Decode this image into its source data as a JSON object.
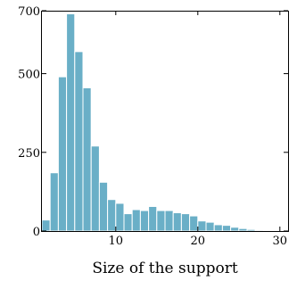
{
  "chart_data": {
    "type": "bar",
    "title": "",
    "xlabel": "Size of the support",
    "ylabel": "",
    "xlim": [
      1,
      31
    ],
    "ylim": [
      0,
      700
    ],
    "xticks": [
      10,
      20,
      30
    ],
    "yticks": [
      0,
      250,
      500,
      700
    ],
    "grid": false,
    "legend": "none",
    "bar_color": "#6aafc7",
    "bins": [
      {
        "x": 1,
        "value": 35
      },
      {
        "x": 2,
        "value": 185
      },
      {
        "x": 3,
        "value": 490
      },
      {
        "x": 4,
        "value": 690
      },
      {
        "x": 5,
        "value": 570
      },
      {
        "x": 6,
        "value": 455
      },
      {
        "x": 7,
        "value": 270
      },
      {
        "x": 8,
        "value": 155
      },
      {
        "x": 9,
        "value": 100
      },
      {
        "x": 10,
        "value": 88
      },
      {
        "x": 11,
        "value": 55
      },
      {
        "x": 12,
        "value": 68
      },
      {
        "x": 13,
        "value": 65
      },
      {
        "x": 14,
        "value": 78
      },
      {
        "x": 15,
        "value": 65
      },
      {
        "x": 16,
        "value": 65
      },
      {
        "x": 17,
        "value": 58
      },
      {
        "x": 18,
        "value": 55
      },
      {
        "x": 19,
        "value": 48
      },
      {
        "x": 20,
        "value": 32
      },
      {
        "x": 21,
        "value": 28
      },
      {
        "x": 22,
        "value": 20
      },
      {
        "x": 23,
        "value": 18
      },
      {
        "x": 24,
        "value": 12
      },
      {
        "x": 25,
        "value": 8
      },
      {
        "x": 26,
        "value": 5
      },
      {
        "x": 27,
        "value": 3
      },
      {
        "x": 28,
        "value": 2
      },
      {
        "x": 29,
        "value": 1
      }
    ]
  }
}
